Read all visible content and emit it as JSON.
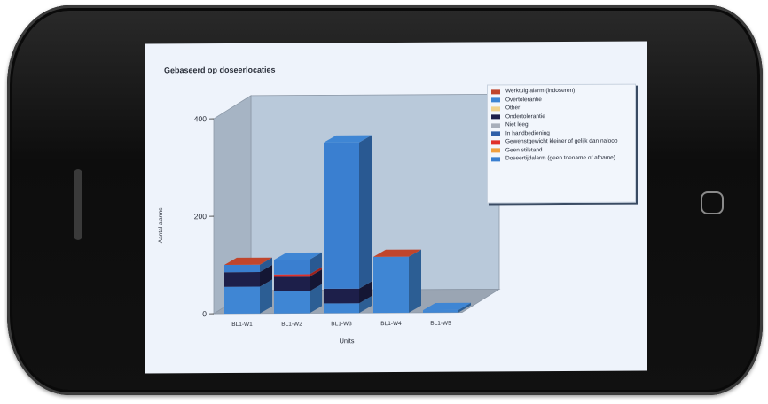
{
  "chart_data": {
    "type": "bar",
    "stacked": true,
    "three_d": true,
    "title": "Gebaseerd op doseerlocaties",
    "xlabel": "Units",
    "ylabel": "Aantal alarms",
    "ylim": [
      0,
      400
    ],
    "yticks": [
      "400",
      "200",
      "0"
    ],
    "categories": [
      "BL1-W1",
      "BL1-W2",
      "BL1-W3",
      "BL1-W4",
      "BL1-W5"
    ],
    "series": [
      {
        "name": "Werktuig alarm (indoseren)",
        "color": "#c0452c",
        "values": [
          0,
          0,
          0,
          0,
          0
        ]
      },
      {
        "name": "Overtolerantie",
        "color": "#3f86d4",
        "values": [
          55,
          45,
          20,
          115,
          5
        ]
      },
      {
        "name": "Other",
        "color": "#f2d38c",
        "values": [
          0,
          0,
          0,
          0,
          0
        ]
      },
      {
        "name": "Ondertolerantie",
        "color": "#1d1f4a",
        "values": [
          30,
          30,
          30,
          0,
          0
        ]
      },
      {
        "name": "Niet leeg",
        "color": "#a8afbb",
        "values": [
          0,
          0,
          0,
          0,
          0
        ]
      },
      {
        "name": "In handbediening",
        "color": "#2f5fa8",
        "values": [
          0,
          0,
          0,
          0,
          0
        ]
      },
      {
        "name": "Gewenstgewicht kleiner of gelijk dan naloop",
        "color": "#e0302a",
        "values": [
          0,
          5,
          0,
          0,
          0
        ]
      },
      {
        "name": "Geen stilstand",
        "color": "#f0a040",
        "values": [
          0,
          0,
          0,
          0,
          0
        ]
      },
      {
        "name": "Doseertijdalarm (geen toename of afname)",
        "color": "#3a7fd0",
        "values": [
          15,
          30,
          300,
          0,
          0
        ]
      }
    ],
    "top_caps": {
      "colors": [
        "#c0452c",
        "#3f86d4",
        "#3f86d4",
        "#c0452c",
        "#3f86d4"
      ]
    },
    "grid": false,
    "legend_position": "right"
  }
}
